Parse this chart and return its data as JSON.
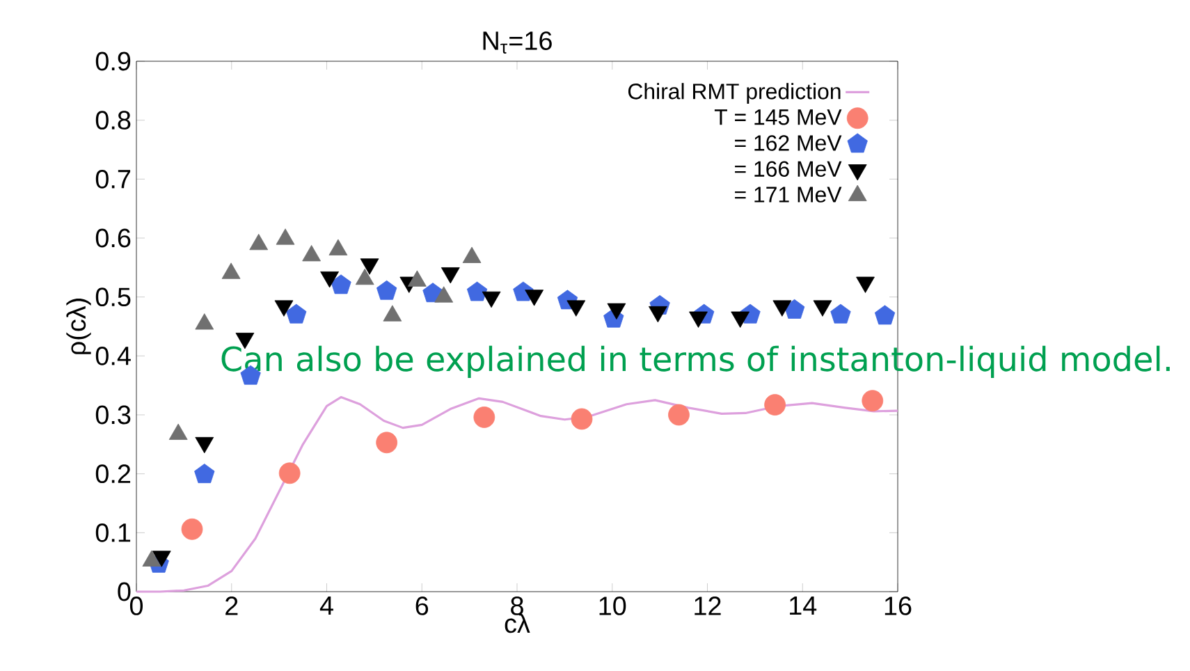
{
  "chart_data": {
    "type": "scatter",
    "title": "N$_{τ}$=16",
    "xlabel": "cλ",
    "ylabel": "ρ(cλ)",
    "xlim": [
      0,
      16
    ],
    "ylim": [
      0,
      0.9
    ],
    "xticks": [
      0,
      2,
      4,
      6,
      8,
      10,
      12,
      14,
      16
    ],
    "yticks": [
      0,
      0.1,
      0.2,
      0.3,
      0.4,
      0.5,
      0.6,
      0.7,
      0.8,
      0.9
    ],
    "legend": "top right",
    "grid": false,
    "annotations": [
      "Can also be explained in terms of instanton-liquid model."
    ],
    "series": [
      {
        "name": "Chiral RMT prediction",
        "type": "line",
        "marker": "none",
        "color": "#dda0dd",
        "x": [
          0,
          0.5,
          1.0,
          1.5,
          2.0,
          2.5,
          3.0,
          3.5,
          4.0,
          4.3,
          4.7,
          5.2,
          5.6,
          6.0,
          6.6,
          7.2,
          7.7,
          8.5,
          9.0,
          9.5,
          10.3,
          10.9,
          11.6,
          12.3,
          12.8,
          13.5,
          14.2,
          14.9,
          15.5,
          16
        ],
        "values": [
          0,
          0.0,
          0.002,
          0.01,
          0.035,
          0.09,
          0.17,
          0.25,
          0.315,
          0.33,
          0.318,
          0.29,
          0.278,
          0.283,
          0.31,
          0.328,
          0.322,
          0.298,
          0.292,
          0.297,
          0.318,
          0.325,
          0.312,
          0.302,
          0.303,
          0.315,
          0.32,
          0.312,
          0.306,
          0.307
        ]
      },
      {
        "name": "T = 145 MeV",
        "marker": "circle",
        "color": "#fa8072",
        "x": [
          1.17,
          3.22,
          5.26,
          7.31,
          9.36,
          11.4,
          13.42,
          15.47
        ],
        "values": [
          0.106,
          0.201,
          0.253,
          0.296,
          0.293,
          0.3,
          0.317,
          0.324
        ]
      },
      {
        "name": "= 162 MeV",
        "color": "#4169e1",
        "x": [
          0.47,
          1.43,
          2.4,
          3.36,
          4.3,
          5.26,
          6.23,
          7.16,
          8.13,
          9.06,
          10.03,
          11.0,
          11.93,
          12.9,
          13.83,
          14.8,
          15.73
        ],
        "values": [
          0.047,
          0.199,
          0.366,
          0.47,
          0.52,
          0.51,
          0.506,
          0.508,
          0.508,
          0.494,
          0.463,
          0.485,
          0.47,
          0.47,
          0.478,
          0.47,
          0.468
        ]
      },
      {
        "name": "= 166 MeV",
        "marker": "triangle-down",
        "color": "#000000",
        "x": [
          0.53,
          1.43,
          2.28,
          3.1,
          4.06,
          4.9,
          5.73,
          6.6,
          7.46,
          8.36,
          9.24,
          10.09,
          10.96,
          11.81,
          12.69,
          13.57,
          14.42,
          15.32
        ],
        "values": [
          0.06,
          0.253,
          0.43,
          0.485,
          0.534,
          0.556,
          0.525,
          0.541,
          0.5,
          0.503,
          0.485,
          0.48,
          0.475,
          0.466,
          0.466,
          0.485,
          0.485,
          0.525
        ]
      },
      {
        "name": "= 171 MeV",
        "marker": "triangle",
        "color": "#707070",
        "x": [
          0.32,
          0.88,
          1.43,
          1.99,
          2.57,
          3.13,
          3.68,
          4.24,
          4.8,
          5.38,
          5.9,
          6.46,
          7.05
        ],
        "values": [
          0.052,
          0.267,
          0.454,
          0.54,
          0.589,
          0.598,
          0.57,
          0.58,
          0.53,
          0.468,
          0.527,
          0.5,
          0.567
        ]
      }
    ]
  }
}
